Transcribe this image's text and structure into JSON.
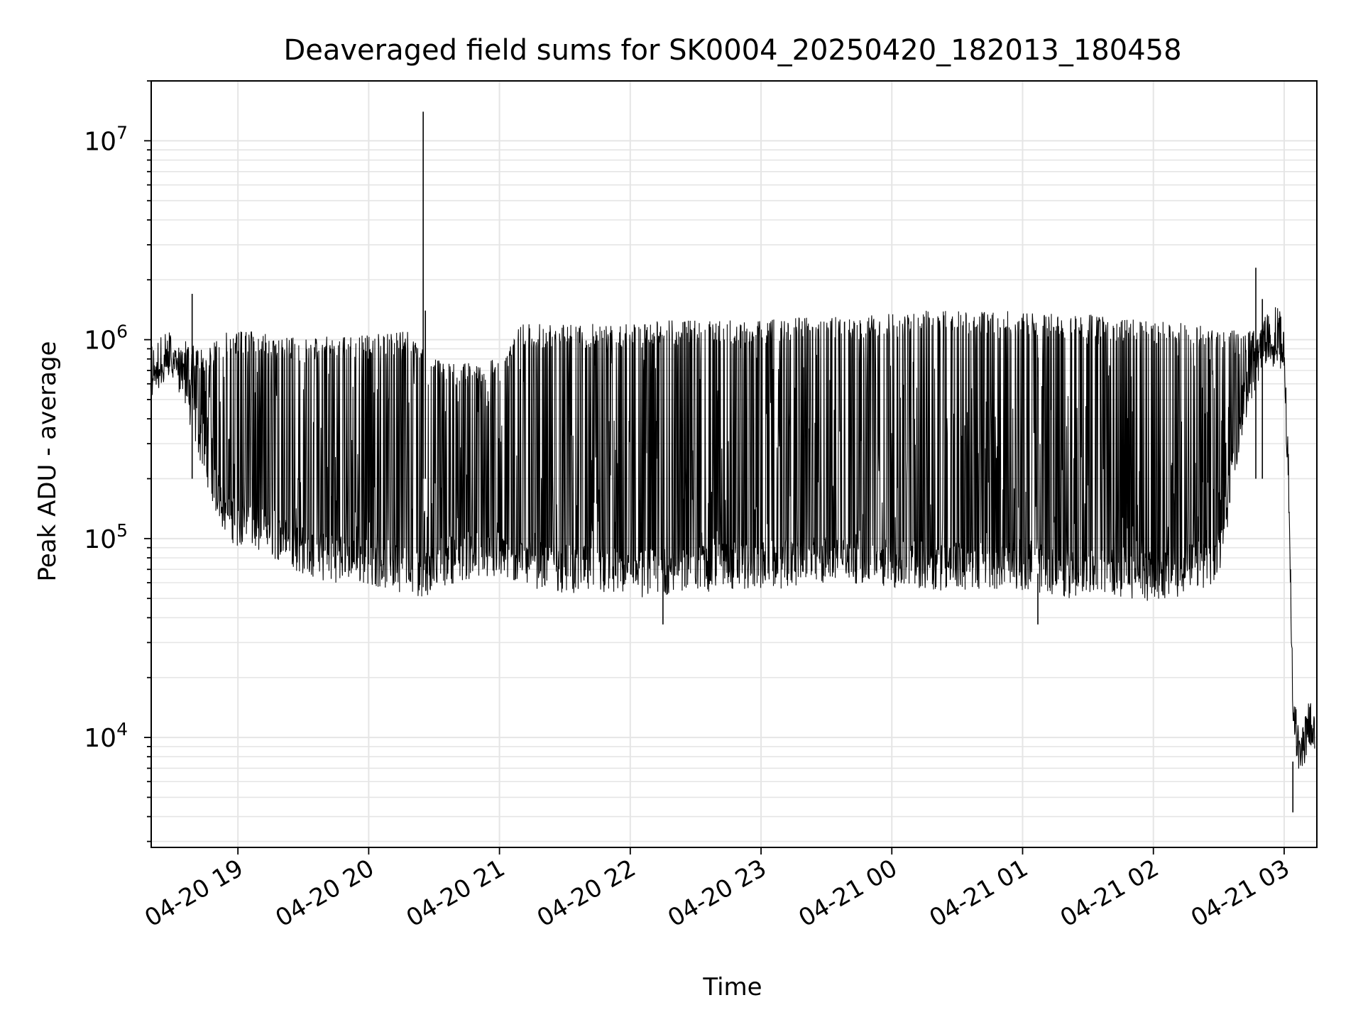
{
  "chart_data": {
    "type": "line",
    "title": "Deaveraged field sums for SK0004_20250420_182013_180458",
    "xlabel": "Time",
    "ylabel": "Peak ADU - average",
    "yscale": "log",
    "ylim": [
      2800,
      20000000
    ],
    "xlim": [
      "2025-04-20 18:20:13",
      "2025-04-21 03:15:00"
    ],
    "grid": true,
    "legend": "none",
    "line_color": "#000000",
    "x_ticks": [
      {
        "value": "2025-04-20 19:00",
        "label": "04-20 19"
      },
      {
        "value": "2025-04-20 20:00",
        "label": "04-20 20"
      },
      {
        "value": "2025-04-20 21:00",
        "label": "04-20 21"
      },
      {
        "value": "2025-04-20 22:00",
        "label": "04-20 22"
      },
      {
        "value": "2025-04-20 23:00",
        "label": "04-20 23"
      },
      {
        "value": "2025-04-21 00:00",
        "label": "04-21 00"
      },
      {
        "value": "2025-04-21 01:00",
        "label": "04-21 01"
      },
      {
        "value": "2025-04-21 02:00",
        "label": "04-21 02"
      },
      {
        "value": "2025-04-21 03:00",
        "label": "04-21 03"
      }
    ],
    "y_ticks": [
      {
        "value": 10000,
        "base": "10",
        "exp": "4"
      },
      {
        "value": 100000,
        "base": "10",
        "exp": "5"
      },
      {
        "value": 1000000,
        "base": "10",
        "exp": "6"
      },
      {
        "value": 10000000,
        "base": "10",
        "exp": "7"
      }
    ],
    "series": [
      {
        "x": [
          "2025-04-20 18:20",
          "2025-04-20 18:25",
          "2025-04-20 18:30",
          "2025-04-20 18:35",
          "2025-04-20 18:40",
          "2025-04-20 18:45",
          "2025-04-20 18:50",
          "2025-04-20 18:55",
          "2025-04-20 19:00",
          "2025-04-20 19:10",
          "2025-04-20 19:20",
          "2025-04-20 19:30",
          "2025-04-20 19:40",
          "2025-04-20 19:50",
          "2025-04-20 20:00",
          "2025-04-20 20:10",
          "2025-04-20 20:20",
          "2025-04-20 20:25",
          "2025-04-20 20:30",
          "2025-04-20 20:40",
          "2025-04-20 20:50",
          "2025-04-20 21:00",
          "2025-04-20 21:10",
          "2025-04-20 21:20",
          "2025-04-20 21:30",
          "2025-04-20 21:40",
          "2025-04-20 21:50",
          "2025-04-20 22:00",
          "2025-04-20 22:10",
          "2025-04-20 22:20",
          "2025-04-20 22:30",
          "2025-04-20 22:40",
          "2025-04-20 22:50",
          "2025-04-20 23:00",
          "2025-04-20 23:10",
          "2025-04-20 23:20",
          "2025-04-20 23:30",
          "2025-04-20 23:40",
          "2025-04-20 23:50",
          "2025-04-21 00:00",
          "2025-04-21 00:10",
          "2025-04-21 00:20",
          "2025-04-21 00:30",
          "2025-04-21 00:40",
          "2025-04-21 00:50",
          "2025-04-21 01:00",
          "2025-04-21 01:10",
          "2025-04-21 01:20",
          "2025-04-21 01:30",
          "2025-04-21 01:40",
          "2025-04-21 01:50",
          "2025-04-21 02:00",
          "2025-04-21 02:10",
          "2025-04-21 02:20",
          "2025-04-21 02:30",
          "2025-04-21 02:40",
          "2025-04-21 02:45",
          "2025-04-21 02:50",
          "2025-04-21 02:55",
          "2025-04-21 02:58",
          "2025-04-21 03:00",
          "2025-04-21 03:02",
          "2025-04-21 03:04",
          "2025-04-21 03:06",
          "2025-04-21 03:08",
          "2025-04-21 03:10",
          "2025-04-21 03:12",
          "2025-04-21 03:14"
        ],
        "y_low": [
          550000,
          600000,
          650000,
          480000,
          300000,
          200000,
          130000,
          100000,
          90000,
          85000,
          75000,
          65000,
          60000,
          60000,
          58000,
          55000,
          52000,
          50000,
          55000,
          60000,
          62000,
          60000,
          58000,
          55000,
          53000,
          52000,
          51000,
          50000,
          50000,
          52000,
          53000,
          54000,
          55000,
          55000,
          56000,
          57000,
          58000,
          60000,
          58000,
          56000,
          55000,
          55000,
          54000,
          55000,
          56000,
          55000,
          52000,
          50000,
          50000,
          52000,
          50000,
          48000,
          50000,
          55000,
          60000,
          300000,
          500000,
          700000,
          850000,
          800000,
          600000,
          150000,
          12000,
          7000,
          6000,
          8000,
          9000,
          9500
        ],
        "y_high": [
          650000,
          750000,
          900000,
          1000000,
          950000,
          900000,
          1000000,
          1100000,
          1100000,
          1100000,
          1050000,
          1000000,
          1050000,
          1050000,
          1050000,
          1100000,
          1100000,
          900000,
          800000,
          750000,
          780000,
          800000,
          1200000,
          1200000,
          1200000,
          1200000,
          1200000,
          1200000,
          1250000,
          1250000,
          1250000,
          1250000,
          1250000,
          1250000,
          1300000,
          1300000,
          1300000,
          1300000,
          1350000,
          1350000,
          1400000,
          1400000,
          1400000,
          1400000,
          1400000,
          1400000,
          1350000,
          1350000,
          1350000,
          1300000,
          1300000,
          1250000,
          1250000,
          1200000,
          1150000,
          1100000,
          1150000,
          1000000,
          950000,
          950000,
          800000,
          200000,
          18000,
          12000,
          10000,
          13000,
          12000,
          11000
        ]
      }
    ],
    "spikes": [
      {
        "x": "2025-04-20 18:39",
        "y": 1700000
      },
      {
        "x": "2025-04-20 20:25",
        "y": 14000000
      },
      {
        "x": "2025-04-20 20:26",
        "y": 1400000
      },
      {
        "x": "2025-04-21 02:47",
        "y": 2300000
      },
      {
        "x": "2025-04-21 02:50",
        "y": 1600000
      }
    ],
    "minima": [
      {
        "x": "2025-04-20 22:15",
        "y": 37000
      },
      {
        "x": "2025-04-21 01:07",
        "y": 37000
      },
      {
        "x": "2025-04-21 03:04",
        "y": 4200
      }
    ]
  }
}
